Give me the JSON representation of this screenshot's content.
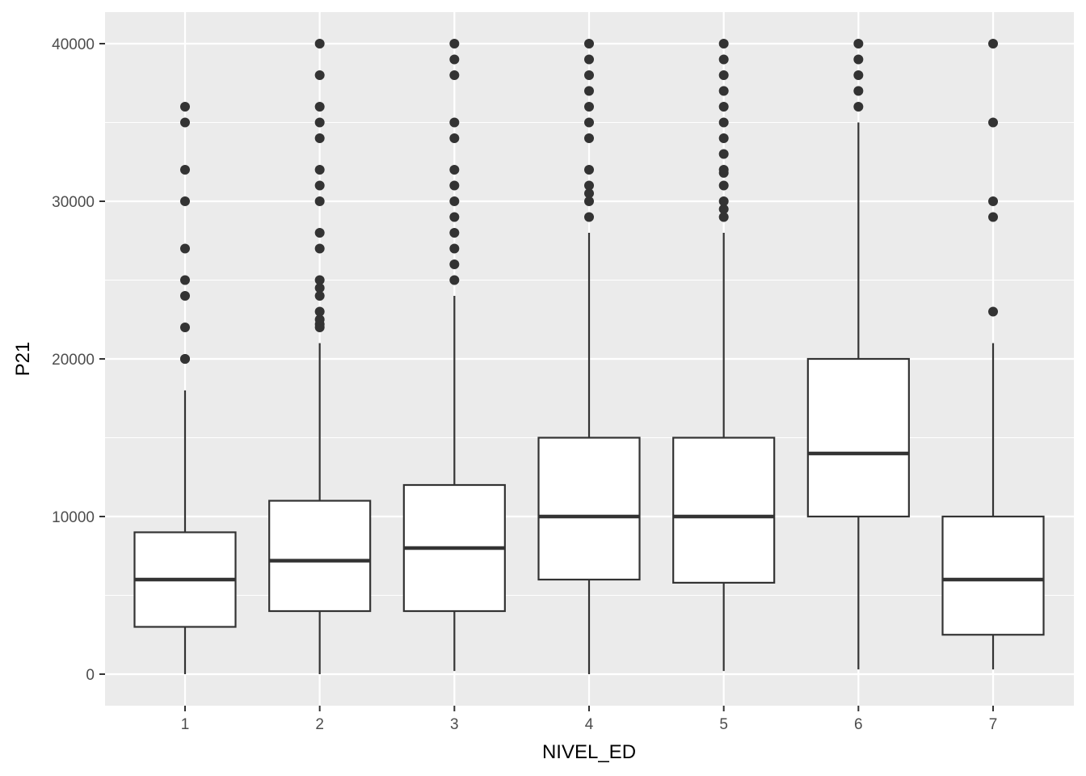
{
  "chart_data": {
    "type": "boxplot",
    "title": "",
    "xlabel": "NIVEL_ED",
    "ylabel": "P21",
    "ylim": [
      -2000,
      42000
    ],
    "yticks": [
      0,
      10000,
      20000,
      30000,
      40000
    ],
    "categories": [
      "1",
      "2",
      "3",
      "4",
      "5",
      "6",
      "7"
    ],
    "grid": true,
    "colors": {
      "panel": "#ebebeb",
      "grid": "#ffffff",
      "box_fill": "#ffffff",
      "box_line": "#333333",
      "tick_text": "#4d4d4d"
    },
    "boxes": [
      {
        "category": "1",
        "whisker_low": 0,
        "q1": 3000,
        "median": 6000,
        "q3": 9000,
        "whisker_high": 18000,
        "outliers": [
          20000,
          20000,
          22000,
          24000,
          25000,
          27000,
          30000,
          32000,
          35000,
          36000
        ]
      },
      {
        "category": "2",
        "whisker_low": 0,
        "q1": 4000,
        "median": 7200,
        "q3": 11000,
        "whisker_high": 21000,
        "outliers": [
          22000,
          22200,
          22500,
          23000,
          24000,
          24500,
          25000,
          27000,
          28000,
          30000,
          31000,
          32000,
          34000,
          35000,
          36000,
          38000,
          40000
        ]
      },
      {
        "category": "3",
        "whisker_low": 200,
        "q1": 4000,
        "median": 8000,
        "q3": 12000,
        "whisker_high": 24000,
        "outliers": [
          25000,
          26000,
          27000,
          28000,
          29000,
          30000,
          31000,
          32000,
          34000,
          35000,
          38000,
          39000,
          40000
        ]
      },
      {
        "category": "4",
        "whisker_low": 0,
        "q1": 6000,
        "median": 10000,
        "q3": 15000,
        "whisker_high": 28000,
        "outliers": [
          29000,
          30000,
          30500,
          31000,
          32000,
          34000,
          35000,
          36000,
          37000,
          38000,
          39000,
          40000
        ]
      },
      {
        "category": "5",
        "whisker_low": 200,
        "q1": 5800,
        "median": 10000,
        "q3": 15000,
        "whisker_high": 28000,
        "outliers": [
          29000,
          29500,
          30000,
          31000,
          31800,
          32000,
          33000,
          34000,
          35000,
          36000,
          37000,
          38000,
          39000,
          40000
        ]
      },
      {
        "category": "6",
        "whisker_low": 300,
        "q1": 10000,
        "median": 14000,
        "q3": 20000,
        "whisker_high": 35000,
        "outliers": [
          36000,
          37000,
          38000,
          39000,
          40000
        ]
      },
      {
        "category": "7",
        "whisker_low": 300,
        "q1": 2500,
        "median": 6000,
        "q3": 10000,
        "whisker_high": 21000,
        "outliers": [
          23000,
          29000,
          30000,
          35000,
          40000
        ]
      }
    ]
  }
}
